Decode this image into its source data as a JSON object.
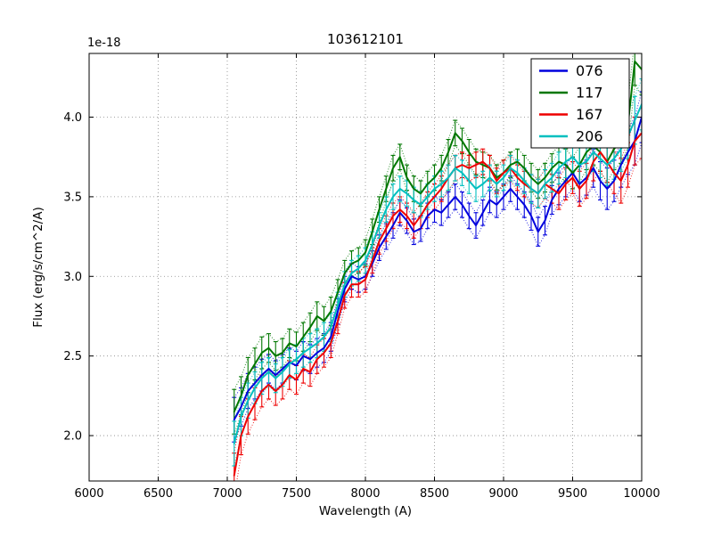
{
  "figure": {
    "background": "#ffffff",
    "frame_color": "#000000",
    "grid_color": "#888888"
  },
  "chart_data": {
    "type": "line",
    "title": "103612101",
    "xlabel": "Wavelength (A)",
    "ylabel": "Flux (erg/s/cm^2/A)",
    "offset_text": "1e-18",
    "xlim": [
      6000,
      10000
    ],
    "ylim": [
      1.715,
      4.4
    ],
    "xticks": [
      6000,
      6500,
      7000,
      7500,
      8000,
      8500,
      9000,
      9500,
      10000
    ],
    "yticks": [
      2.0,
      2.5,
      3.0,
      3.5,
      4.0
    ],
    "grid": true,
    "legend_position": "upper right",
    "x": [
      7050,
      7100,
      7150,
      7200,
      7250,
      7300,
      7350,
      7400,
      7450,
      7500,
      7550,
      7600,
      7650,
      7700,
      7750,
      7800,
      7850,
      7900,
      7950,
      8000,
      8050,
      8100,
      8150,
      8200,
      8250,
      8300,
      8350,
      8400,
      8450,
      8500,
      8550,
      8600,
      8650,
      8700,
      8750,
      8800,
      8850,
      8900,
      8950,
      9000,
      9050,
      9100,
      9150,
      9200,
      9250,
      9300,
      9350,
      9400,
      9450,
      9500,
      9550,
      9600,
      9650,
      9700,
      9750,
      9800,
      9850,
      9900,
      9950,
      10000
    ],
    "errors": [
      0.14,
      0.12,
      0.11,
      0.1,
      0.1,
      0.09,
      0.09,
      0.09,
      0.09,
      0.09,
      0.09,
      0.09,
      0.09,
      0.09,
      0.09,
      0.08,
      0.08,
      0.08,
      0.08,
      0.08,
      0.08,
      0.08,
      0.08,
      0.08,
      0.08,
      0.08,
      0.08,
      0.08,
      0.08,
      0.08,
      0.08,
      0.08,
      0.08,
      0.08,
      0.08,
      0.08,
      0.08,
      0.08,
      0.08,
      0.08,
      0.08,
      0.08,
      0.08,
      0.09,
      0.09,
      0.09,
      0.09,
      0.1,
      0.1,
      0.1,
      0.11,
      0.11,
      0.12,
      0.12,
      0.13,
      0.13,
      0.14,
      0.14,
      0.15,
      0.16
    ],
    "series": [
      {
        "name": "076",
        "color": "#0000dd",
        "values": [
          2.1,
          2.18,
          2.28,
          2.33,
          2.38,
          2.42,
          2.38,
          2.42,
          2.46,
          2.44,
          2.5,
          2.48,
          2.52,
          2.55,
          2.62,
          2.78,
          2.92,
          3.0,
          2.98,
          3.0,
          3.08,
          3.18,
          3.25,
          3.32,
          3.4,
          3.35,
          3.28,
          3.3,
          3.38,
          3.42,
          3.4,
          3.45,
          3.5,
          3.45,
          3.38,
          3.32,
          3.4,
          3.48,
          3.45,
          3.5,
          3.55,
          3.5,
          3.45,
          3.38,
          3.28,
          3.35,
          3.48,
          3.55,
          3.6,
          3.65,
          3.58,
          3.62,
          3.68,
          3.6,
          3.55,
          3.6,
          3.7,
          3.78,
          3.85,
          4.0
        ]
      },
      {
        "name": "117",
        "color": "#007700",
        "values": [
          2.15,
          2.25,
          2.38,
          2.45,
          2.52,
          2.55,
          2.5,
          2.52,
          2.58,
          2.56,
          2.62,
          2.68,
          2.75,
          2.72,
          2.78,
          2.9,
          3.02,
          3.08,
          3.1,
          3.15,
          3.28,
          3.42,
          3.55,
          3.68,
          3.75,
          3.62,
          3.55,
          3.52,
          3.58,
          3.62,
          3.68,
          3.78,
          3.9,
          3.85,
          3.78,
          3.72,
          3.7,
          3.68,
          3.62,
          3.65,
          3.7,
          3.72,
          3.68,
          3.62,
          3.58,
          3.62,
          3.68,
          3.72,
          3.7,
          3.65,
          3.7,
          3.78,
          3.82,
          3.78,
          3.72,
          3.8,
          3.85,
          3.95,
          4.35,
          4.3
        ]
      },
      {
        "name": "167",
        "color": "#ee0000",
        "values": [
          1.75,
          2.0,
          2.12,
          2.2,
          2.28,
          2.32,
          2.28,
          2.32,
          2.38,
          2.35,
          2.42,
          2.4,
          2.48,
          2.52,
          2.58,
          2.72,
          2.88,
          2.95,
          2.95,
          2.98,
          3.1,
          3.22,
          3.3,
          3.38,
          3.42,
          3.38,
          3.32,
          3.38,
          3.45,
          3.5,
          3.55,
          3.62,
          3.68,
          3.7,
          3.68,
          3.7,
          3.72,
          3.68,
          3.6,
          3.65,
          3.68,
          3.62,
          3.58,
          3.55,
          3.52,
          3.58,
          3.55,
          3.52,
          3.58,
          3.62,
          3.55,
          3.6,
          3.72,
          3.78,
          3.72,
          3.65,
          3.6,
          3.7,
          3.85,
          3.9
        ]
      },
      {
        "name": "206",
        "color": "#00bfbf",
        "values": [
          1.95,
          2.12,
          2.22,
          2.3,
          2.36,
          2.4,
          2.36,
          2.4,
          2.45,
          2.48,
          2.52,
          2.55,
          2.58,
          2.62,
          2.68,
          2.82,
          2.95,
          3.02,
          3.05,
          3.1,
          3.2,
          3.32,
          3.42,
          3.5,
          3.55,
          3.52,
          3.48,
          3.45,
          3.5,
          3.55,
          3.58,
          3.62,
          3.68,
          3.65,
          3.6,
          3.55,
          3.58,
          3.62,
          3.58,
          3.62,
          3.68,
          3.65,
          3.6,
          3.55,
          3.52,
          3.58,
          3.62,
          3.68,
          3.72,
          3.75,
          3.7,
          3.72,
          3.78,
          3.74,
          3.7,
          3.74,
          3.8,
          3.88,
          3.98,
          4.08
        ]
      }
    ]
  }
}
